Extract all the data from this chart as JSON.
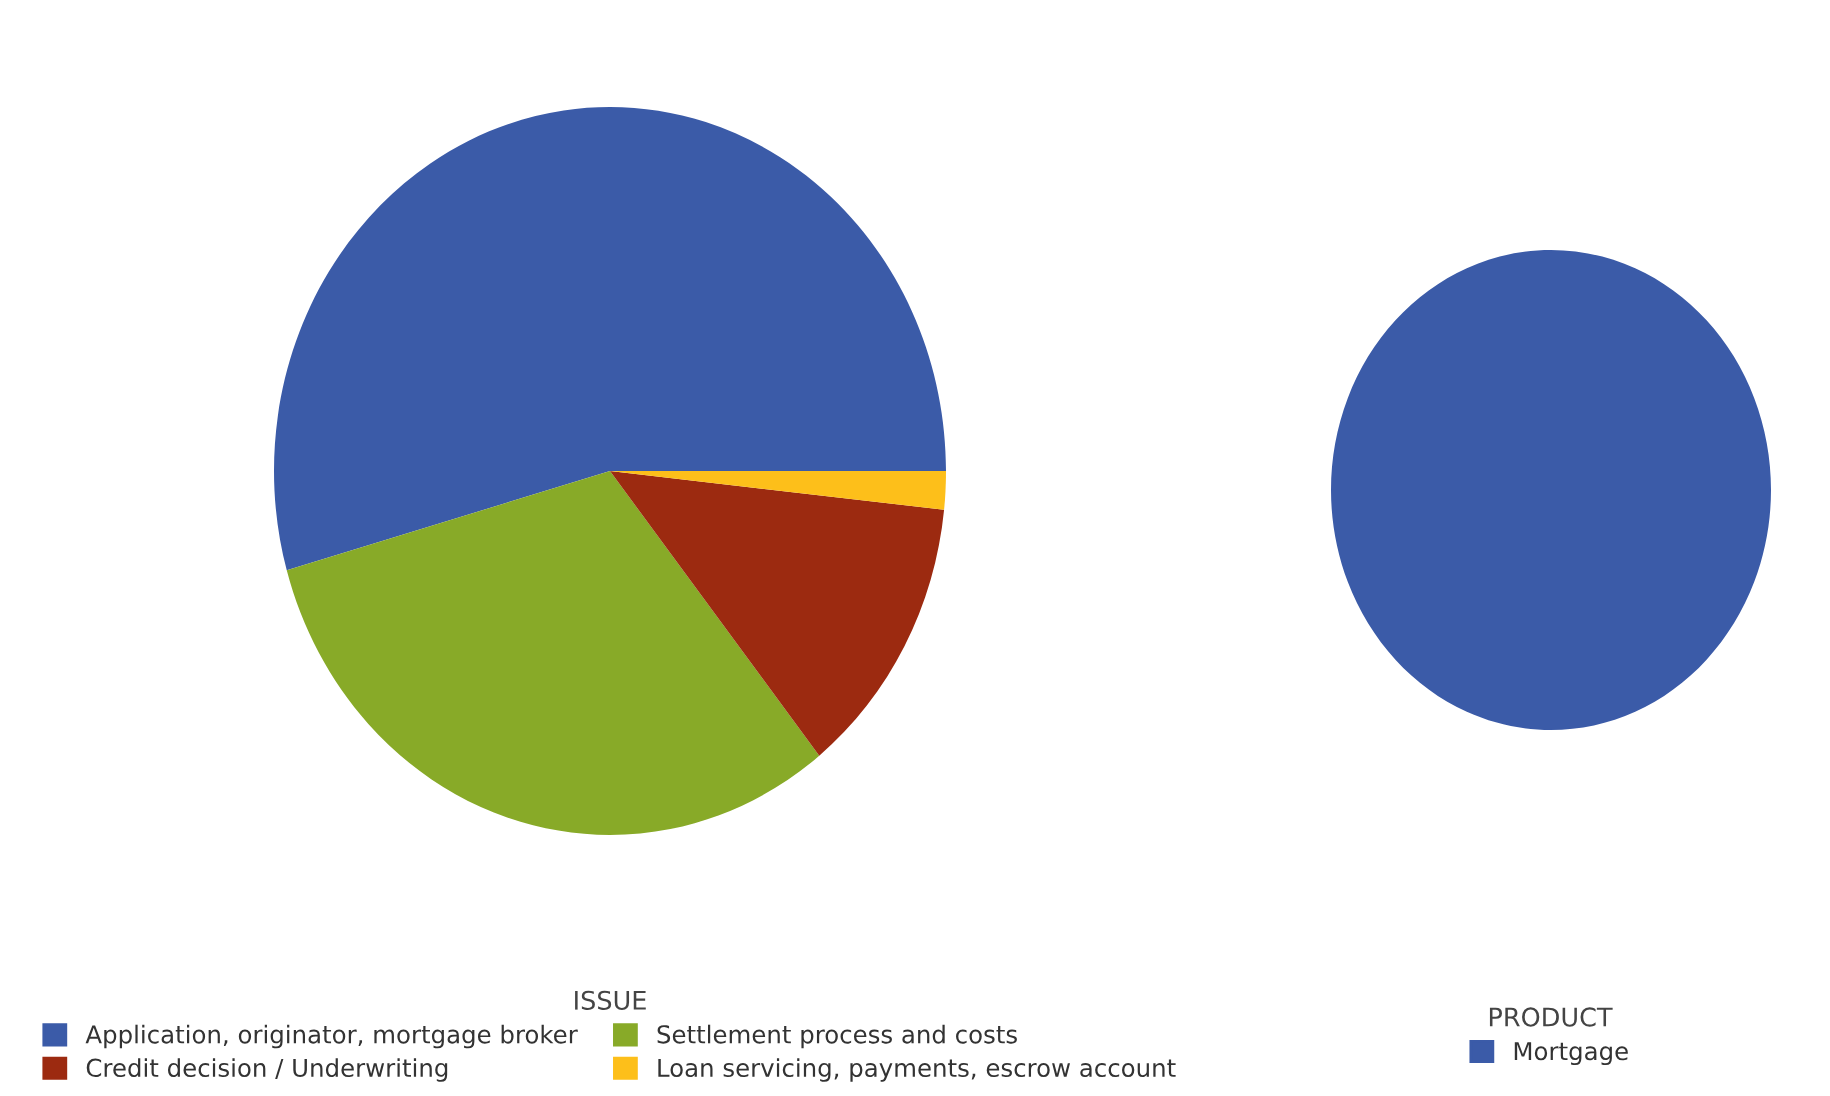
{
  "chart_data": [
    {
      "type": "pie",
      "legend_title": "ISSUE",
      "legend": "bottom",
      "categories": [
        "Application, originator, mortgage broker",
        "Settlement process and costs",
        "Credit decision / Underwriting",
        "Loan servicing, payments, escrow account"
      ],
      "values": [
        54.4,
        31.3,
        12.6,
        1.7
      ],
      "colors": [
        "#3b5ba8",
        "#88aa28",
        "#9c2a10",
        "#fdbf1a"
      ]
    },
    {
      "type": "pie",
      "legend_title": "PRODUCT",
      "legend": "bottom",
      "categories": [
        "Mortgage"
      ],
      "values": [
        100
      ],
      "colors": [
        "#3b5ba8"
      ]
    }
  ]
}
